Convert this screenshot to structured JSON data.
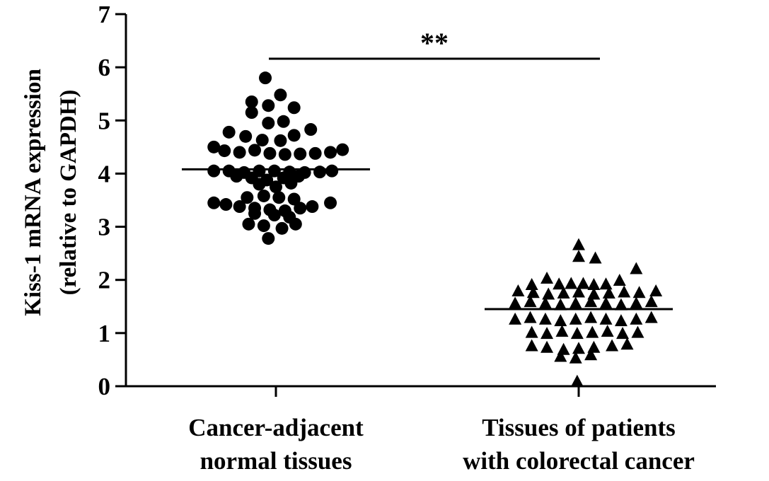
{
  "chart_data": {
    "type": "scatter",
    "ylabel": [
      "Kiss-1 mRNA expression",
      "(relative to GAPDH)"
    ],
    "ylim": [
      0,
      7
    ],
    "yticks": [
      "0",
      "1",
      "2",
      "3",
      "4",
      "5",
      "6",
      "7"
    ],
    "categories": [
      [
        "Cancer-adjacent",
        "normal tissues"
      ],
      [
        "Tissues of patients",
        "with colorectal cancer"
      ]
    ],
    "significance": "**",
    "series": [
      {
        "marker": "circle",
        "color": "#000000",
        "mean": 4.08,
        "points": [
          [
            -0.07,
            5.8
          ],
          [
            -0.16,
            5.35
          ],
          [
            -0.05,
            5.28
          ],
          [
            0.03,
            5.48
          ],
          [
            0.12,
            5.24
          ],
          [
            -0.16,
            5.15
          ],
          [
            -0.05,
            4.95
          ],
          [
            0.05,
            4.98
          ],
          [
            -0.31,
            4.78
          ],
          [
            -0.2,
            4.7
          ],
          [
            -0.09,
            4.63
          ],
          [
            0.03,
            4.62
          ],
          [
            0.12,
            4.72
          ],
          [
            0.23,
            4.83
          ],
          [
            -0.41,
            4.5
          ],
          [
            -0.34,
            4.43
          ],
          [
            -0.24,
            4.4
          ],
          [
            -0.14,
            4.44
          ],
          [
            -0.04,
            4.38
          ],
          [
            0.06,
            4.36
          ],
          [
            0.16,
            4.37
          ],
          [
            0.26,
            4.38
          ],
          [
            0.36,
            4.4
          ],
          [
            0.44,
            4.45
          ],
          [
            -0.41,
            4.05
          ],
          [
            -0.31,
            4.05
          ],
          [
            -0.21,
            4.02
          ],
          [
            -0.11,
            4.05
          ],
          [
            -0.01,
            4.05
          ],
          [
            0.09,
            4.03
          ],
          [
            0.19,
            4.02
          ],
          [
            0.29,
            4.03
          ],
          [
            0.37,
            4.05
          ],
          [
            -0.26,
            3.95
          ],
          [
            -0.16,
            3.92
          ],
          [
            -0.06,
            3.88
          ],
          [
            0.05,
            3.92
          ],
          [
            0.15,
            3.95
          ],
          [
            -0.11,
            3.8
          ],
          [
            0.0,
            3.75
          ],
          [
            0.1,
            3.82
          ],
          [
            -0.19,
            3.55
          ],
          [
            -0.08,
            3.58
          ],
          [
            0.02,
            3.55
          ],
          [
            0.12,
            3.52
          ],
          [
            -0.41,
            3.45
          ],
          [
            -0.33,
            3.42
          ],
          [
            -0.24,
            3.38
          ],
          [
            -0.14,
            3.35
          ],
          [
            -0.04,
            3.32
          ],
          [
            0.06,
            3.3
          ],
          [
            0.16,
            3.35
          ],
          [
            0.24,
            3.38
          ],
          [
            0.36,
            3.45
          ],
          [
            -0.14,
            3.25
          ],
          [
            -0.01,
            3.22
          ],
          [
            0.09,
            3.18
          ],
          [
            -0.18,
            3.05
          ],
          [
            -0.08,
            3.02
          ],
          [
            0.04,
            2.97
          ],
          [
            0.13,
            3.05
          ],
          [
            -0.05,
            2.78
          ]
        ]
      },
      {
        "marker": "triangle",
        "color": "#000000",
        "mean": 1.45,
        "points": [
          [
            0.0,
            2.65
          ],
          [
            0.0,
            2.43
          ],
          [
            0.11,
            2.4
          ],
          [
            0.38,
            2.2
          ],
          [
            -0.21,
            2.02
          ],
          [
            0.27,
            1.98
          ],
          [
            -0.31,
            1.9
          ],
          [
            -0.13,
            1.91
          ],
          [
            -0.05,
            1.92
          ],
          [
            0.03,
            1.92
          ],
          [
            0.1,
            1.9
          ],
          [
            0.18,
            1.91
          ],
          [
            -0.4,
            1.78
          ],
          [
            -0.3,
            1.75
          ],
          [
            -0.2,
            1.72
          ],
          [
            -0.1,
            1.74
          ],
          [
            0.0,
            1.76
          ],
          [
            0.1,
            1.72
          ],
          [
            0.2,
            1.74
          ],
          [
            0.3,
            1.76
          ],
          [
            0.4,
            1.75
          ],
          [
            0.51,
            1.78
          ],
          [
            -0.42,
            1.55
          ],
          [
            -0.32,
            1.58
          ],
          [
            -0.22,
            1.55
          ],
          [
            -0.12,
            1.52
          ],
          [
            -0.02,
            1.55
          ],
          [
            0.08,
            1.58
          ],
          [
            0.18,
            1.55
          ],
          [
            0.28,
            1.52
          ],
          [
            0.38,
            1.55
          ],
          [
            0.48,
            1.58
          ],
          [
            -0.42,
            1.25
          ],
          [
            -0.32,
            1.28
          ],
          [
            -0.22,
            1.25
          ],
          [
            -0.12,
            1.22
          ],
          [
            -0.02,
            1.25
          ],
          [
            0.08,
            1.28
          ],
          [
            0.18,
            1.25
          ],
          [
            0.28,
            1.22
          ],
          [
            0.38,
            1.25
          ],
          [
            0.48,
            1.28
          ],
          [
            -0.31,
            1.0
          ],
          [
            -0.21,
            0.98
          ],
          [
            -0.11,
            1.02
          ],
          [
            -0.01,
            0.98
          ],
          [
            0.09,
            1.0
          ],
          [
            0.19,
            1.02
          ],
          [
            0.29,
            0.98
          ],
          [
            0.39,
            1.0
          ],
          [
            -0.31,
            0.75
          ],
          [
            -0.21,
            0.72
          ],
          [
            -0.1,
            0.68
          ],
          [
            0.0,
            0.7
          ],
          [
            0.1,
            0.72
          ],
          [
            0.22,
            0.75
          ],
          [
            0.32,
            0.78
          ],
          [
            -0.12,
            0.55
          ],
          [
            -0.02,
            0.52
          ],
          [
            0.08,
            0.58
          ],
          [
            -0.01,
            0.08
          ]
        ]
      }
    ]
  }
}
